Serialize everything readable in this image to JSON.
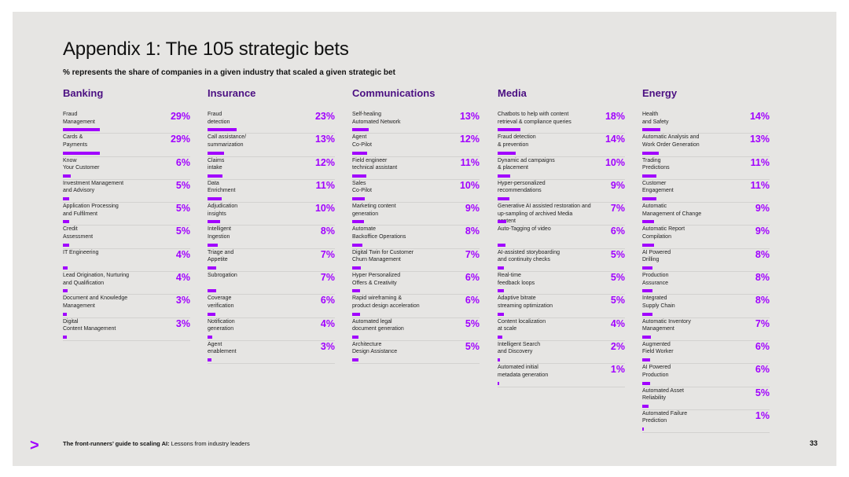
{
  "title": "Appendix 1: The 105 strategic bets",
  "subtitle": "% represents the share of companies in a given industry that scaled a given strategic bet",
  "footer": {
    "logo_glyph": ">",
    "doc_title_bold": "The front-runners’ guide to scaling AI:",
    "doc_title_rest": " Lessons from industry leaders",
    "page_number": "33"
  },
  "colors": {
    "accent": "#a100ff",
    "header": "#4b0f82",
    "background": "#e6e5e3"
  },
  "industries": [
    {
      "name": "Banking",
      "bets": [
        {
          "label": "Fraud\nManagement",
          "value": "29%",
          "share": 0.29
        },
        {
          "label": "Cards &\nPayments",
          "value": "29%",
          "share": 0.29
        },
        {
          "label": "Know\nYour Customer",
          "value": "6%",
          "share": 0.06
        },
        {
          "label": "Investment Management\nand Advisory",
          "value": "5%",
          "share": 0.05
        },
        {
          "label": "Application Processing\nand Fulfilment",
          "value": "5%",
          "share": 0.05
        },
        {
          "label": "Credit\nAssessment",
          "value": "5%",
          "share": 0.05
        },
        {
          "label": "IT Engineering",
          "value": "4%",
          "share": 0.04
        },
        {
          "label": "Lead Origination, Nurturing\nand Qualification",
          "value": "4%",
          "share": 0.04
        },
        {
          "label": "Document and Knowledge\nManagement",
          "value": "3%",
          "share": 0.03
        },
        {
          "label": "Digital\nContent Management",
          "value": "3%",
          "share": 0.03
        }
      ]
    },
    {
      "name": "Insurance",
      "bets": [
        {
          "label": "Fraud\ndetection",
          "value": "23%",
          "share": 0.23
        },
        {
          "label": "Call assistance/\nsummarization",
          "value": "13%",
          "share": 0.13
        },
        {
          "label": "Claims\nintake",
          "value": "12%",
          "share": 0.12
        },
        {
          "label": "Data\nEnrichment",
          "value": "11%",
          "share": 0.11
        },
        {
          "label": "Adjudication\ninsights",
          "value": "10%",
          "share": 0.1
        },
        {
          "label": "Intelligent\nIngestion",
          "value": "8%",
          "share": 0.08
        },
        {
          "label": "Triage and\nAppetite",
          "value": "7%",
          "share": 0.07
        },
        {
          "label": "Subrogation",
          "value": "7%",
          "share": 0.07
        },
        {
          "label": "Coverage\nverification",
          "value": "6%",
          "share": 0.06
        },
        {
          "label": "Notification\ngeneration",
          "value": "4%",
          "share": 0.04
        },
        {
          "label": "Agent\nenablement",
          "value": "3%",
          "share": 0.03
        }
      ]
    },
    {
      "name": "Communications",
      "bets": [
        {
          "label": "Self-healing\nAutomated Network",
          "value": "13%",
          "share": 0.13
        },
        {
          "label": "Agent\nCo-Pilot",
          "value": "12%",
          "share": 0.12
        },
        {
          "label": "Field engineer\ntechnical assistant",
          "value": "11%",
          "share": 0.11
        },
        {
          "label": "Sales\nCo-Pilot",
          "value": "10%",
          "share": 0.1
        },
        {
          "label": "Marketing content\ngeneration",
          "value": "9%",
          "share": 0.09
        },
        {
          "label": "Automate\nBackoffice Operations",
          "value": "8%",
          "share": 0.08
        },
        {
          "label": "Digital Twin for Customer\nChurn Management",
          "value": "7%",
          "share": 0.07
        },
        {
          "label": "Hyper Personalized\nOffers & Creativity",
          "value": "6%",
          "share": 0.06
        },
        {
          "label": "Rapid wireframing &\nproduct design acceleration",
          "value": "6%",
          "share": 0.06
        },
        {
          "label": "Automated legal\ndocument generation",
          "value": "5%",
          "share": 0.05
        },
        {
          "label": "Architecture\nDesign Assistance",
          "value": "5%",
          "share": 0.05
        }
      ]
    },
    {
      "name": "Media",
      "bets": [
        {
          "label": "Chatbots to help with content\nretrieval & compliance queries",
          "value": "18%",
          "share": 0.18
        },
        {
          "label": "Fraud detection\n& prevention",
          "value": "14%",
          "share": 0.14
        },
        {
          "label": "Dynamic ad campaigns\n& placement",
          "value": "10%",
          "share": 0.1
        },
        {
          "label": "Hyper-personalized\nrecommendations",
          "value": "9%",
          "share": 0.09
        },
        {
          "label": "Generative AI assisted restoration and\nup-sampling of archived Media content",
          "value": "7%",
          "share": 0.07
        },
        {
          "label": "Auto-Tagging of video",
          "value": "6%",
          "share": 0.06
        },
        {
          "label": "AI-assisted storyboarding\nand continuity checks",
          "value": "5%",
          "share": 0.05
        },
        {
          "label": "Real-time\nfeedback loops",
          "value": "5%",
          "share": 0.05
        },
        {
          "label": "Adaptive bitrate\nstreaming optimization",
          "value": "5%",
          "share": 0.05
        },
        {
          "label": "Content localization\nat scale",
          "value": "4%",
          "share": 0.04
        },
        {
          "label": "Intelligent Search\nand Discovery",
          "value": "2%",
          "share": 0.02
        },
        {
          "label": "Automated initial\nmetadata generation",
          "value": "1%",
          "share": 0.01
        }
      ]
    },
    {
      "name": "Energy",
      "bets": [
        {
          "label": "Health\nand Safety",
          "value": "14%",
          "share": 0.14
        },
        {
          "label": "Automatic Analysis and\nWork Order Generation",
          "value": "13%",
          "share": 0.13
        },
        {
          "label": "Trading\nPredictions",
          "value": "11%",
          "share": 0.11
        },
        {
          "label": "Customer\nEngagement",
          "value": "11%",
          "share": 0.11
        },
        {
          "label": "Automatic\nManagement of Change",
          "value": "9%",
          "share": 0.09
        },
        {
          "label": "Automatic Report\nCompilation",
          "value": "9%",
          "share": 0.09
        },
        {
          "label": "AI Powered\nDrilling",
          "value": "8%",
          "share": 0.08
        },
        {
          "label": "Production\nAssurance",
          "value": "8%",
          "share": 0.08
        },
        {
          "label": "Integrated\nSupply Chain",
          "value": "8%",
          "share": 0.08
        },
        {
          "label": "Automatic Inventory\nManagement",
          "value": "7%",
          "share": 0.07
        },
        {
          "label": "Augmented\nField Worker",
          "value": "6%",
          "share": 0.06
        },
        {
          "label": "AI Powered\nProduction",
          "value": "6%",
          "share": 0.06
        },
        {
          "label": "Automated Asset\nReliability",
          "value": "5%",
          "share": 0.05
        },
        {
          "label": "Automated Failure\nPrediction",
          "value": "1%",
          "share": 0.01
        }
      ]
    }
  ]
}
